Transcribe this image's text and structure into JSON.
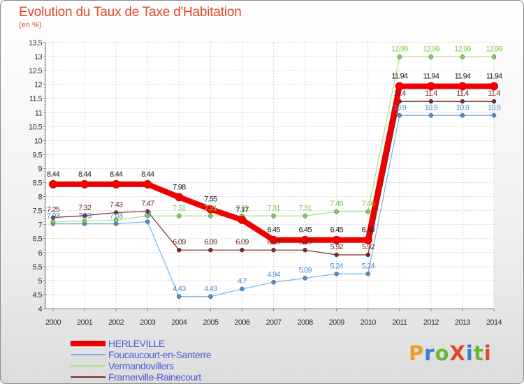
{
  "title": "Evolution du Taux de Taxe d'Habitation",
  "subtitle": "(en %)",
  "brand": {
    "text": "ProXiti",
    "colors": [
      "#e8a020",
      "#3a7fd0",
      "#66b832",
      "#e0472a",
      "#3a7fd0",
      "#66b832",
      "#e0472a"
    ]
  },
  "chart_data": {
    "type": "line",
    "x": [
      "2000",
      "2001",
      "2002",
      "2003",
      "2004",
      "2005",
      "2006",
      "2007",
      "2008",
      "2009",
      "2010",
      "2011",
      "2012",
      "2013",
      "2014"
    ],
    "ylim": [
      4,
      13.5
    ],
    "yticks": [
      "4",
      "4.5",
      "5",
      "5.5",
      "6",
      "6.5",
      "7",
      "7.5",
      "8",
      "8.5",
      "9",
      "9.5",
      "10",
      "10.5",
      "11",
      "11.5",
      "12",
      "12.5",
      "13",
      "13.5"
    ],
    "legend_position": "bottom-left",
    "series": [
      {
        "name": "Foucaucourt-en-Santerre",
        "color": "#4a8fd4",
        "line_color": "#7ab0e0",
        "width": 1.2,
        "marker": 3,
        "values": [
          7.03,
          7.03,
          7.03,
          7.1,
          4.43,
          4.43,
          4.7,
          4.94,
          5.09,
          5.24,
          5.24,
          10.9,
          10.9,
          10.9,
          10.9
        ],
        "labels": [
          "7.03",
          "7.03",
          "7.03",
          "7.1",
          "4.43",
          "4.43",
          "4.7",
          "4.94",
          "5.09",
          "5.24",
          "5.24",
          "10.9",
          "10.9",
          "10.9",
          "10.9"
        ]
      },
      {
        "name": "Vermandovillers",
        "color": "#7ad048",
        "line_color": "#a8e08a",
        "width": 1.2,
        "marker": 3,
        "values": [
          7.1,
          7.13,
          7.16,
          7.31,
          7.31,
          7.31,
          7.31,
          7.31,
          7.31,
          7.46,
          7.46,
          12.99,
          12.99,
          12.99,
          12.99
        ],
        "labels": [
          "",
          "",
          "",
          "",
          "7.31",
          "7.31",
          "7.31",
          "7.31",
          "7.31",
          "7.46",
          "7.46",
          "12.99",
          "12.99",
          "12.99",
          "12.99"
        ]
      },
      {
        "name": "Framerville-Rainecourt",
        "color": "#7a2828",
        "line_color": "#7a2828",
        "width": 1.2,
        "marker": 3,
        "values": [
          7.25,
          7.32,
          7.43,
          7.47,
          6.09,
          6.09,
          6.09,
          6.09,
          6.09,
          5.92,
          5.92,
          11.4,
          11.4,
          11.4,
          11.4
        ],
        "labels": [
          "7.25",
          "7.32",
          "7.43",
          "7.47",
          "6.09",
          "6.09",
          "6.09",
          "6.09",
          "6.09",
          "5.92",
          "5.92",
          "11.4",
          "11.4",
          "11.4",
          "11.4"
        ]
      },
      {
        "name": "HERLEVILLE",
        "color": "#ee0000",
        "line_color": "#ee0000",
        "width": 8,
        "marker": 6,
        "values": [
          8.44,
          8.44,
          8.44,
          8.44,
          7.98,
          7.55,
          7.17,
          6.45,
          6.45,
          6.45,
          6.45,
          11.94,
          11.94,
          11.94,
          11.94
        ],
        "labels": [
          "8.44",
          "8.44",
          "8.44",
          "8.44",
          "7.98",
          "7.55",
          "7.17",
          "6.45",
          "6.45",
          "6.45",
          "6.45",
          "11.94",
          "11.94",
          "11.94",
          "11.94"
        ]
      }
    ]
  },
  "legend": [
    {
      "name": "HERLEVILLE",
      "color": "#ee0000",
      "thickness": 8
    },
    {
      "name": "Foucaucourt-en-Santerre",
      "color": "#7ab0e0",
      "thickness": 2
    },
    {
      "name": "Vermandovillers",
      "color": "#a8e08a",
      "thickness": 2
    },
    {
      "name": "Framerville-Rainecourt",
      "color": "#7a2828",
      "thickness": 2
    }
  ]
}
